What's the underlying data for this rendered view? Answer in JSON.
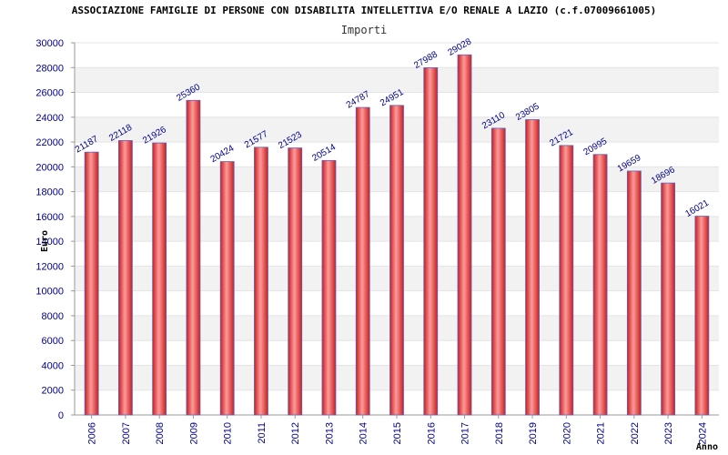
{
  "chart_data": {
    "type": "bar",
    "title": "ASSOCIAZIONE FAMIGLIE DI PERSONE CON DISABILITA INTELLETTIVA E/O RENALE A LAZIO (c.f.07009661005)",
    "subtitle": "Importi",
    "xlabel": "Anno",
    "ylabel": "Euro",
    "categories": [
      "2006",
      "2007",
      "2008",
      "2009",
      "2010",
      "2011",
      "2012",
      "2013",
      "2014",
      "2015",
      "2016",
      "2017",
      "2018",
      "2019",
      "2020",
      "2021",
      "2022",
      "2023",
      "2024"
    ],
    "values": [
      21187,
      22118,
      21926,
      25360,
      20424,
      21577,
      21523,
      20514,
      24787,
      24951,
      27988,
      29028,
      23110,
      23805,
      21721,
      20995,
      19659,
      18696,
      16021
    ],
    "ylim": [
      0,
      30000
    ],
    "yticks": [
      0,
      2000,
      4000,
      6000,
      8000,
      10000,
      12000,
      14000,
      16000,
      18000,
      20000,
      22000,
      24000,
      26000,
      28000,
      30000
    ],
    "grid": "horizontal bands",
    "colors": {
      "bar": "#e03030",
      "bar_highlight": "#ff8a8a",
      "bar_edge": "#6060c0",
      "label": "#00008b",
      "band": "#f2f2f2"
    }
  }
}
